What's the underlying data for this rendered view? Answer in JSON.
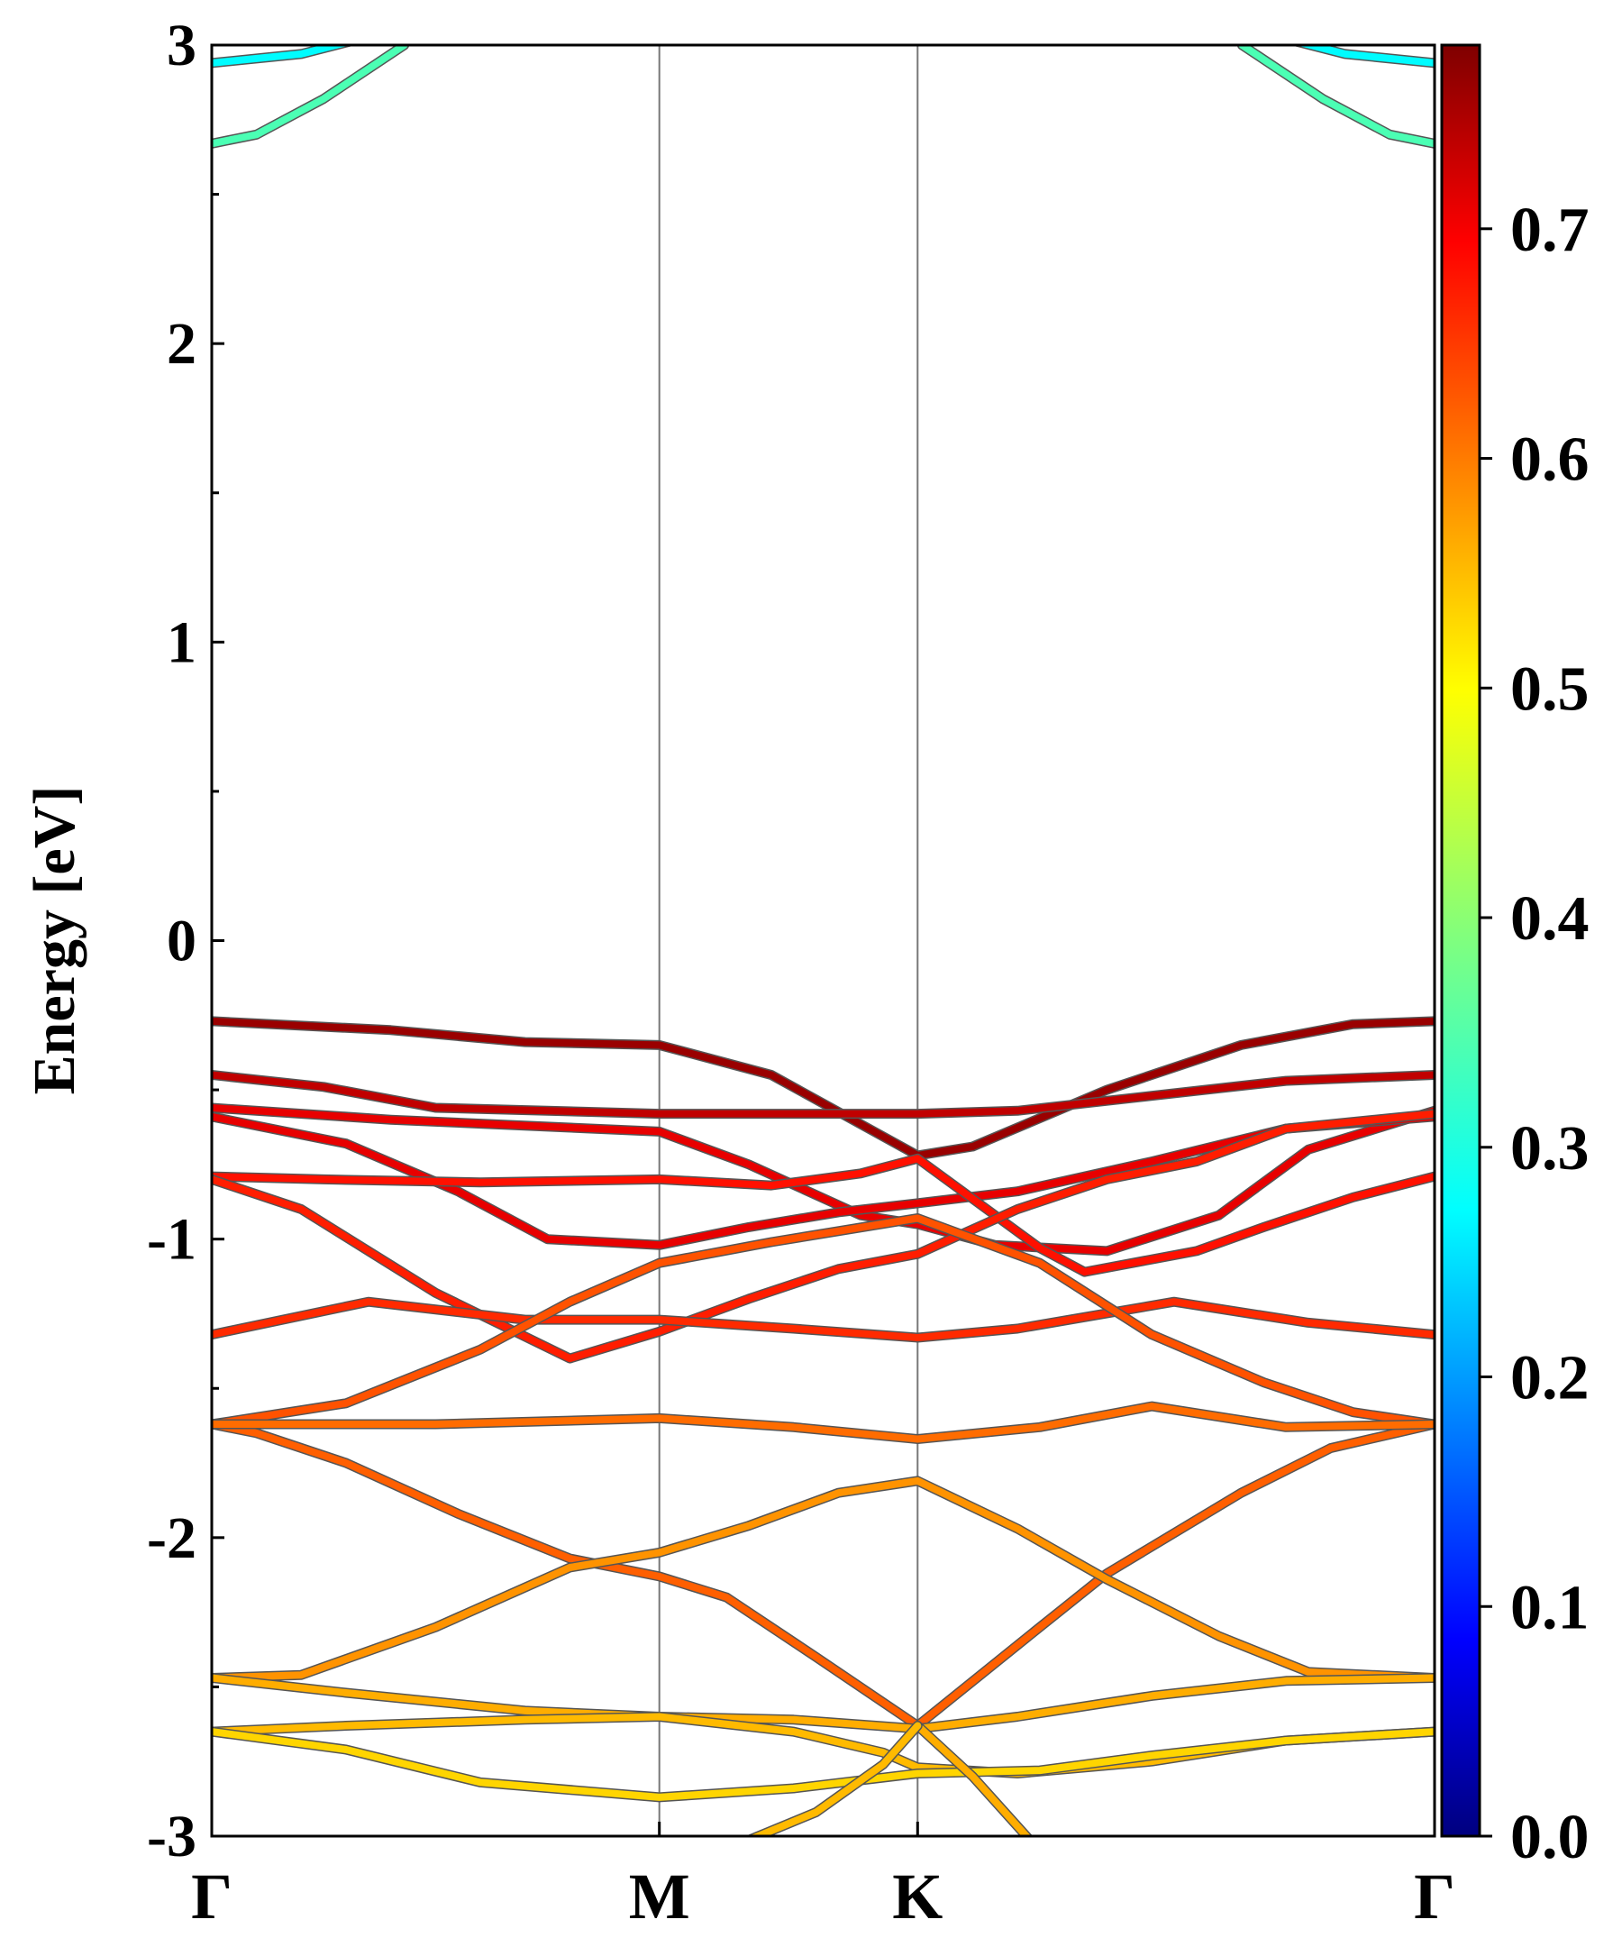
{
  "chart_data": {
    "type": "line",
    "subtype": "electronic band structure (projected weight colormap)",
    "title": "",
    "xlabel": "",
    "ylabel": "Energy [eV]",
    "ylim": [
      -3,
      3
    ],
    "yticks": [
      "3",
      "2",
      "1",
      "0",
      "-1",
      "-2",
      "-3"
    ],
    "ytick_values": [
      3,
      2,
      1,
      0,
      -1,
      -2,
      -3
    ],
    "minor_y_step": 0.5,
    "kpath_labels": [
      "Γ",
      "M",
      "K",
      "Γ"
    ],
    "kpath_positions": [
      0,
      1,
      1.577,
      2.732
    ],
    "grid": false,
    "vertical_lines_at_kpoints": true,
    "line_color_map": "jet",
    "colorbar": {
      "range": [
        0,
        0.78
      ],
      "ticks": [
        "0.0",
        "0.1",
        "0.2",
        "0.3",
        "0.4",
        "0.5",
        "0.6",
        "0.7"
      ],
      "tick_values": [
        0,
        0.1,
        0.2,
        0.3,
        0.4,
        0.5,
        0.6,
        0.7
      ]
    },
    "series": [
      {
        "weight": 0.29,
        "points": [
          [
            0,
            2.94
          ],
          [
            0.2,
            2.97
          ],
          [
            0.33,
            3.02
          ]
        ],
        "mirror": true
      },
      {
        "weight": 0.35,
        "points": [
          [
            0,
            2.67
          ],
          [
            0.1,
            2.7
          ],
          [
            0.25,
            2.82
          ],
          [
            0.43,
            3.0
          ]
        ],
        "mirror": true
      },
      {
        "weight": 0.76,
        "points": [
          [
            0,
            -0.27
          ],
          [
            0.4,
            -0.3
          ],
          [
            0.7,
            -0.34
          ],
          [
            1.0,
            -0.35
          ],
          [
            1.25,
            -0.45
          ],
          [
            1.577,
            -0.72
          ],
          [
            1.7,
            -0.69
          ],
          [
            2.0,
            -0.5
          ],
          [
            2.3,
            -0.35
          ],
          [
            2.55,
            -0.28
          ],
          [
            2.732,
            -0.27
          ]
        ]
      },
      {
        "weight": 0.73,
        "points": [
          [
            0,
            -0.45
          ],
          [
            0.25,
            -0.49
          ],
          [
            0.5,
            -0.56
          ],
          [
            1.0,
            -0.58
          ],
          [
            1.577,
            -0.58
          ],
          [
            1.8,
            -0.57
          ],
          [
            2.1,
            -0.52
          ],
          [
            2.4,
            -0.47
          ],
          [
            2.732,
            -0.45
          ]
        ]
      },
      {
        "weight": 0.7,
        "points": [
          [
            0,
            -0.56
          ],
          [
            0.4,
            -0.6
          ],
          [
            1.0,
            -0.64
          ],
          [
            1.2,
            -0.75
          ],
          [
            1.45,
            -0.92
          ],
          [
            1.577,
            -0.95
          ],
          [
            1.75,
            -1.02
          ],
          [
            2.0,
            -1.04
          ],
          [
            2.25,
            -0.92
          ],
          [
            2.45,
            -0.7
          ],
          [
            2.732,
            -0.57
          ]
        ]
      },
      {
        "weight": 0.7,
        "points": [
          [
            0,
            -0.59
          ],
          [
            0.3,
            -0.68
          ],
          [
            0.55,
            -0.84
          ],
          [
            0.75,
            -1.0
          ],
          [
            1.0,
            -1.02
          ],
          [
            1.2,
            -0.96
          ],
          [
            1.4,
            -0.91
          ],
          [
            1.577,
            -0.88
          ],
          [
            1.8,
            -0.84
          ],
          [
            2.1,
            -0.74
          ],
          [
            2.4,
            -0.63
          ],
          [
            2.732,
            -0.59
          ]
        ]
      },
      {
        "weight": 0.67,
        "points": [
          [
            0,
            -0.79
          ],
          [
            0.25,
            -0.8
          ],
          [
            0.6,
            -0.81
          ],
          [
            1.0,
            -0.8
          ],
          [
            1.25,
            -0.82
          ],
          [
            1.45,
            -0.78
          ],
          [
            1.577,
            -0.73
          ],
          [
            1.85,
            -1.03
          ],
          [
            1.95,
            -1.11
          ],
          [
            2.2,
            -1.04
          ],
          [
            2.35,
            -0.96
          ],
          [
            2.55,
            -0.86
          ],
          [
            2.732,
            -0.79
          ]
        ]
      },
      {
        "weight": 0.66,
        "points": [
          [
            0,
            -0.8
          ],
          [
            0.2,
            -0.9
          ],
          [
            0.5,
            -1.18
          ],
          [
            0.8,
            -1.4
          ],
          [
            1.0,
            -1.31
          ],
          [
            1.2,
            -1.2
          ],
          [
            1.4,
            -1.1
          ],
          [
            1.577,
            -1.05
          ],
          [
            1.8,
            -0.9
          ],
          [
            2.0,
            -0.8
          ],
          [
            2.2,
            -0.74
          ],
          [
            2.4,
            -0.63
          ],
          [
            2.732,
            -0.58
          ]
        ]
      },
      {
        "weight": 0.65,
        "points": [
          [
            0,
            -1.32
          ],
          [
            0.35,
            -1.21
          ],
          [
            0.7,
            -1.27
          ],
          [
            1.0,
            -1.27
          ],
          [
            1.3,
            -1.3
          ],
          [
            1.577,
            -1.33
          ],
          [
            1.8,
            -1.3
          ],
          [
            2.15,
            -1.21
          ],
          [
            2.45,
            -1.28
          ],
          [
            2.732,
            -1.32
          ]
        ]
      },
      {
        "weight": 0.62,
        "points": [
          [
            0,
            -1.62
          ],
          [
            0.3,
            -1.55
          ],
          [
            0.6,
            -1.37
          ],
          [
            0.8,
            -1.21
          ],
          [
            1.0,
            -1.08
          ],
          [
            1.25,
            -1.01
          ],
          [
            1.577,
            -0.93
          ],
          [
            1.85,
            -1.08
          ],
          [
            2.1,
            -1.32
          ],
          [
            2.35,
            -1.48
          ],
          [
            2.55,
            -1.58
          ],
          [
            2.732,
            -1.62
          ]
        ]
      },
      {
        "weight": 0.61,
        "points": [
          [
            0,
            -1.62
          ],
          [
            0.1,
            -1.65
          ],
          [
            0.3,
            -1.75
          ],
          [
            0.55,
            -1.92
          ],
          [
            0.8,
            -2.07
          ],
          [
            1.0,
            -2.13
          ],
          [
            1.15,
            -2.2
          ],
          [
            1.35,
            -2.4
          ],
          [
            1.577,
            -2.63
          ],
          [
            1.85,
            -2.3
          ],
          [
            2.0,
            -2.12
          ],
          [
            2.3,
            -1.85
          ],
          [
            2.5,
            -1.7
          ],
          [
            2.732,
            -1.62
          ]
        ]
      },
      {
        "weight": 0.6,
        "points": [
          [
            0,
            -1.62
          ],
          [
            0.25,
            -1.62
          ],
          [
            0.5,
            -1.62
          ],
          [
            1.0,
            -1.6
          ],
          [
            1.3,
            -1.63
          ],
          [
            1.577,
            -1.67
          ],
          [
            1.85,
            -1.63
          ],
          [
            2.1,
            -1.56
          ],
          [
            2.4,
            -1.63
          ],
          [
            2.732,
            -1.62
          ]
        ]
      },
      {
        "weight": 0.57,
        "points": [
          [
            0,
            -2.47
          ],
          [
            0.2,
            -2.46
          ],
          [
            0.5,
            -2.3
          ],
          [
            0.8,
            -2.1
          ],
          [
            1.0,
            -2.05
          ],
          [
            1.2,
            -1.96
          ],
          [
            1.4,
            -1.85
          ],
          [
            1.577,
            -1.81
          ],
          [
            1.8,
            -1.97
          ],
          [
            2.0,
            -2.14
          ],
          [
            2.25,
            -2.33
          ],
          [
            2.45,
            -2.45
          ],
          [
            2.732,
            -2.47
          ]
        ]
      },
      {
        "weight": 0.55,
        "points": [
          [
            0,
            -2.47
          ],
          [
            0.3,
            -2.52
          ],
          [
            0.7,
            -2.58
          ],
          [
            1.0,
            -2.6
          ],
          [
            1.3,
            -2.61
          ],
          [
            1.577,
            -2.64
          ],
          [
            1.8,
            -2.6
          ],
          [
            2.1,
            -2.53
          ],
          [
            2.4,
            -2.48
          ],
          [
            2.732,
            -2.47
          ]
        ]
      },
      {
        "weight": 0.54,
        "points": [
          [
            0,
            -2.65
          ],
          [
            0.3,
            -2.63
          ],
          [
            0.7,
            -2.61
          ],
          [
            1.0,
            -2.6
          ],
          [
            1.3,
            -2.65
          ],
          [
            1.5,
            -2.72
          ],
          [
            1.577,
            -2.77
          ],
          [
            1.8,
            -2.79
          ],
          [
            2.1,
            -2.75
          ],
          [
            2.4,
            -2.68
          ],
          [
            2.732,
            -2.65
          ]
        ]
      },
      {
        "weight": 0.52,
        "points": [
          [
            0,
            -2.65
          ],
          [
            0.3,
            -2.71
          ],
          [
            0.6,
            -2.82
          ],
          [
            1.0,
            -2.87
          ],
          [
            1.3,
            -2.84
          ],
          [
            1.577,
            -2.79
          ],
          [
            1.85,
            -2.78
          ],
          [
            2.1,
            -2.73
          ],
          [
            2.4,
            -2.68
          ],
          [
            2.732,
            -2.65
          ]
        ]
      },
      {
        "weight": 0.55,
        "points": [
          [
            1.577,
            -2.63
          ],
          [
            1.7,
            -2.8
          ],
          [
            1.85,
            -3.05
          ]
        ]
      },
      {
        "weight": 0.54,
        "points": [
          [
            1.14,
            -3.05
          ],
          [
            1.35,
            -2.92
          ],
          [
            1.5,
            -2.76
          ],
          [
            1.577,
            -2.63
          ]
        ]
      }
    ]
  }
}
